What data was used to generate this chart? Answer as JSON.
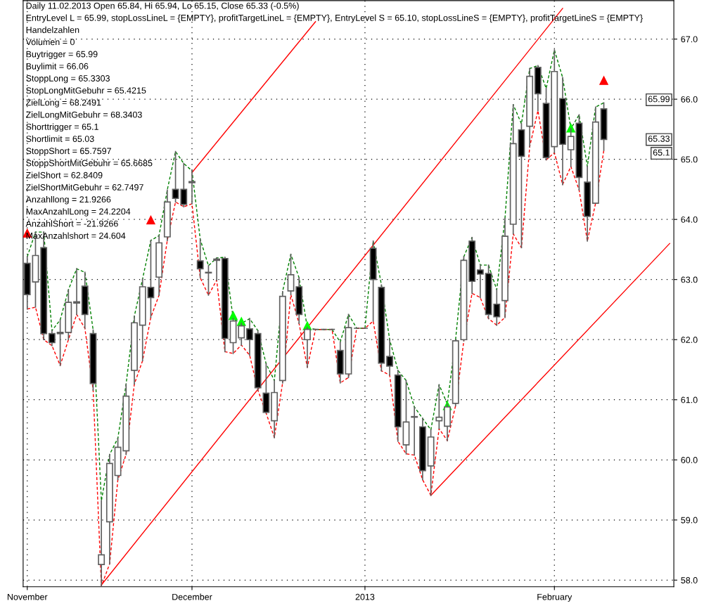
{
  "chart_data": {
    "type": "candlestick",
    "title": "Daily 11.02.2013 Open 65.84, Hi 65.94, Lo 65.15, Close 65.33 (-0.5%)",
    "annotations": [
      "EntryLevel L = 65.99, stopLossLineL = {EMPTY}, profitTargetLineL = {EMPTY}, EntryLevel S = 65.10, stopLossLineS = {EMPTY}, profitTargetLineS = {EMPTY}",
      "Handelzahlen",
      "Volumen = 0",
      "Buytrigger = 65.99",
      "Buylimit = 66.06",
      "StoppLong = 65.3303",
      "StopLongMitGebuhr = 65.4215",
      "ZielLong = 68.2491",
      "ZielLongMitGebuhr = 68.3403",
      "Shorttrigger = 65.1",
      "Shortlimit = 65.03",
      "StoppShort = 65.7597",
      "StoppShortMitGebuhr = 65.6685",
      "ZielShort = 62.8409",
      "ZielShortMitGebuhr = 62.7497",
      "Anzahllong = 21.9266",
      "MaxAnzahlLong = 24.2204",
      "AnzahlShort = -21.9266",
      "MaxAnzahlshort = 24.604",
      {
        "text": "65.99",
        "y": 65.99
      },
      {
        "text": "65.33",
        "y": 65.33
      },
      {
        "text": "65.1",
        "y": 65.1
      }
    ],
    "categories": [
      "November",
      null,
      null,
      null,
      null,
      null,
      null,
      null,
      null,
      null,
      null,
      null,
      null,
      null,
      null,
      null,
      null,
      null,
      null,
      null,
      "December",
      null,
      null,
      null,
      null,
      null,
      null,
      null,
      null,
      null,
      null,
      null,
      null,
      null,
      null,
      null,
      null,
      null,
      null,
      null,
      null,
      "2013",
      null,
      null,
      null,
      null,
      null,
      null,
      null,
      null,
      null,
      null,
      null,
      null,
      null,
      null,
      null,
      null,
      null,
      null,
      null,
      null,
      null,
      null,
      "February",
      null,
      null,
      null,
      null,
      null,
      null,
      null,
      null,
      null,
      null,
      null,
      null,
      null,
      null
    ],
    "ohlc": [
      [
        63.27,
        63.38,
        62.51,
        62.75
      ],
      [
        62.96,
        63.79,
        62.54,
        63.4
      ],
      [
        63.53,
        63.79,
        62.0,
        62.1
      ],
      [
        62.1,
        62.15,
        61.9,
        61.95
      ],
      [
        62.12,
        62.33,
        61.57,
        62.1
      ],
      [
        62.12,
        62.83,
        62.0,
        62.62
      ],
      [
        62.61,
        63.18,
        62.42,
        62.63
      ],
      [
        62.89,
        63.12,
        62.19,
        62.42
      ],
      [
        62.1,
        62.16,
        61.16,
        61.27
      ],
      [
        58.26,
        59.32,
        57.9,
        58.42
      ],
      [
        58.97,
        60.09,
        58.27,
        59.94
      ],
      [
        59.74,
        60.36,
        59.67,
        60.21
      ],
      [
        60.15,
        61.26,
        60.09,
        61.06
      ],
      [
        61.49,
        62.39,
        61.26,
        62.28
      ],
      [
        62.24,
        63.01,
        61.65,
        62.88
      ],
      [
        62.87,
        63.65,
        62.37,
        62.7
      ],
      [
        63.04,
        63.73,
        62.74,
        63.61
      ],
      [
        63.71,
        64.49,
        63.65,
        64.29
      ],
      [
        64.5,
        65.13,
        64.29,
        64.35
      ],
      [
        64.5,
        64.93,
        64.21,
        64.25
      ],
      [
        64.63,
        64.81,
        64.26,
        64.61
      ],
      [
        63.31,
        63.67,
        63.03,
        63.18
      ],
      [
        63.12,
        63.23,
        62.74,
        63.11
      ],
      [
        63.32,
        63.36,
        62.99,
        63.34
      ],
      [
        63.35,
        63.37,
        61.8,
        62.02
      ],
      [
        61.95,
        62.35,
        61.77,
        62.31
      ],
      [
        62.03,
        62.27,
        61.91,
        62.23
      ],
      [
        62.18,
        62.35,
        61.74,
        62.0
      ],
      [
        62.1,
        62.15,
        61.16,
        61.2
      ],
      [
        61.11,
        61.6,
        60.78,
        60.79
      ],
      [
        60.65,
        61.32,
        60.37,
        61.12
      ],
      [
        61.32,
        62.8,
        61.28,
        62.72
      ],
      [
        62.81,
        63.42,
        62.75,
        63.08
      ],
      [
        62.88,
        63.03,
        62.27,
        62.42
      ],
      [
        62.0,
        62.2,
        61.54,
        62.17
      ],
      [
        62.17,
        62.17,
        62.17,
        62.17
      ],
      [
        62.17,
        62.17,
        62.17,
        62.17
      ],
      [
        62.17,
        62.17,
        62.17,
        62.17
      ],
      [
        61.82,
        61.96,
        61.28,
        61.43
      ],
      [
        61.43,
        62.42,
        61.37,
        62.2
      ],
      [
        62.19,
        62.19,
        62.19,
        62.19
      ],
      [
        62.19,
        62.19,
        62.19,
        62.19
      ],
      [
        63.52,
        63.64,
        62.31,
        63.0
      ],
      [
        62.87,
        62.91,
        61.48,
        61.61
      ],
      [
        61.72,
        62.0,
        61.41,
        61.56
      ],
      [
        61.41,
        61.49,
        60.31,
        60.55
      ],
      [
        60.25,
        61.32,
        60.1,
        60.63
      ],
      [
        60.72,
        60.88,
        60.08,
        60.71
      ],
      [
        60.55,
        60.69,
        59.67,
        59.82
      ],
      [
        59.9,
        60.5,
        59.41,
        60.38
      ],
      [
        60.65,
        61.25,
        60.52,
        60.71
      ],
      [
        60.56,
        60.93,
        60.32,
        60.88
      ],
      [
        60.94,
        62.0,
        60.9,
        61.98
      ],
      [
        62.0,
        63.38,
        61.98,
        63.32
      ],
      [
        63.64,
        63.7,
        62.77,
        62.97
      ],
      [
        63.16,
        63.24,
        62.7,
        63.09
      ],
      [
        63.1,
        63.24,
        62.35,
        62.42
      ],
      [
        62.59,
        62.83,
        62.24,
        62.38
      ],
      [
        62.65,
        64.02,
        62.37,
        63.72
      ],
      [
        63.92,
        65.91,
        63.76,
        65.26
      ],
      [
        65.49,
        65.59,
        63.53,
        65.05
      ],
      [
        65.55,
        66.51,
        65.21,
        66.38
      ],
      [
        66.53,
        66.56,
        65.81,
        66.09
      ],
      [
        65.93,
        66.18,
        64.99,
        65.03
      ],
      [
        65.21,
        66.82,
        65.11,
        66.46
      ],
      [
        66.01,
        66.36,
        64.58,
        65.25
      ],
      [
        65.16,
        65.51,
        64.88,
        65.38
      ],
      [
        65.6,
        65.74,
        64.49,
        64.7
      ],
      [
        64.62,
        64.88,
        63.64,
        64.05
      ],
      [
        64.27,
        65.87,
        64.27,
        65.62
      ],
      [
        65.84,
        65.94,
        65.15,
        65.33
      ],
      null,
      null,
      null,
      null,
      null,
      null,
      null,
      null
    ],
    "series": [
      {
        "type": "line",
        "color": "#008000",
        "line_style": "dashed",
        "values": [
          63.38,
          63.79,
          63.79,
          62.15,
          62.33,
          62.83,
          63.18,
          63.12,
          62.16,
          59.32,
          60.09,
          60.36,
          61.26,
          62.39,
          63.01,
          63.65,
          63.73,
          64.49,
          65.13,
          64.93,
          64.81,
          63.67,
          63.23,
          63.36,
          63.37,
          62.35,
          62.27,
          62.35,
          62.15,
          61.6,
          61.32,
          62.8,
          63.42,
          63.03,
          62.2,
          62.17,
          62.17,
          62.17,
          61.96,
          62.42,
          62.19,
          62.19,
          63.64,
          62.91,
          62.0,
          61.49,
          61.32,
          60.88,
          60.69,
          60.5,
          61.25,
          60.93,
          62.0,
          63.38,
          63.7,
          63.24,
          63.24,
          62.83,
          64.02,
          65.91,
          65.59,
          66.51,
          66.56,
          66.18,
          66.82,
          66.36,
          65.51,
          65.74,
          64.88,
          65.87,
          65.94,
          null,
          null,
          null,
          null,
          null,
          null,
          null,
          null
        ]
      },
      {
        "type": "line",
        "color": "#ff0000",
        "line_style": "dashed",
        "values": [
          62.51,
          62.54,
          62.0,
          61.9,
          61.57,
          62.0,
          62.42,
          62.19,
          61.16,
          57.9,
          58.27,
          59.67,
          60.09,
          61.26,
          61.65,
          62.37,
          62.74,
          63.65,
          64.29,
          64.21,
          64.26,
          63.03,
          62.74,
          62.99,
          61.8,
          61.77,
          61.91,
          61.74,
          61.16,
          60.78,
          60.37,
          61.28,
          62.75,
          62.27,
          61.54,
          62.17,
          62.17,
          62.17,
          61.28,
          61.37,
          62.19,
          62.19,
          62.31,
          61.48,
          61.41,
          60.31,
          60.1,
          60.08,
          59.67,
          59.41,
          60.52,
          60.32,
          60.9,
          61.98,
          62.77,
          62.7,
          62.35,
          62.24,
          62.37,
          63.76,
          63.53,
          65.21,
          65.81,
          64.99,
          65.11,
          64.58,
          64.88,
          64.49,
          63.64,
          64.27,
          65.15,
          null,
          null,
          null,
          null,
          null,
          null,
          null,
          null
        ]
      },
      {
        "type": "line",
        "color": "#ff0000",
        "line_style": "solid",
        "values": [
          null,
          null,
          null,
          null,
          null,
          null,
          null,
          null,
          null,
          null,
          null,
          null,
          null,
          null,
          null,
          null,
          null,
          null,
          null,
          null,
          64.78,
          null,
          null,
          null,
          null,
          null,
          null,
          null,
          null,
          null,
          null,
          null,
          null,
          null,
          null,
          67.29,
          null,
          null,
          null,
          null,
          null,
          null,
          null,
          null,
          null,
          null,
          null,
          null,
          null,
          null,
          null,
          null,
          null,
          null,
          null,
          null,
          null,
          null,
          null,
          null,
          null,
          null,
          null,
          null,
          null,
          null,
          null,
          null,
          null,
          null,
          null,
          null,
          null,
          null,
          null,
          null,
          null,
          null,
          null
        ]
      },
      {
        "type": "line",
        "color": "#ff0000",
        "line_style": "solid",
        "values": [
          null,
          null,
          null,
          null,
          null,
          null,
          null,
          null,
          null,
          57.92,
          null,
          null,
          null,
          null,
          null,
          null,
          null,
          null,
          null,
          null,
          null,
          null,
          null,
          null,
          null,
          null,
          null,
          null,
          null,
          null,
          null,
          null,
          null,
          null,
          null,
          null,
          null,
          null,
          null,
          null,
          null,
          null,
          null,
          null,
          null,
          null,
          null,
          null,
          null,
          null,
          null,
          null,
          null,
          null,
          null,
          null,
          null,
          null,
          null,
          null,
          null,
          null,
          null,
          null,
          null,
          67.51,
          null,
          null,
          null,
          null,
          null,
          null,
          null,
          null,
          null,
          null,
          null,
          null,
          null
        ]
      },
      {
        "type": "line",
        "color": "#ff0000",
        "line_style": "solid",
        "values": [
          null,
          null,
          null,
          null,
          null,
          null,
          null,
          null,
          null,
          null,
          null,
          null,
          null,
          null,
          null,
          null,
          null,
          null,
          null,
          null,
          null,
          null,
          null,
          null,
          null,
          null,
          null,
          null,
          null,
          null,
          null,
          null,
          null,
          null,
          null,
          null,
          null,
          null,
          null,
          null,
          null,
          null,
          null,
          null,
          null,
          null,
          null,
          null,
          null,
          59.41,
          null,
          null,
          null,
          null,
          null,
          null,
          null,
          null,
          null,
          null,
          null,
          null,
          null,
          null,
          null,
          null,
          null,
          null,
          null,
          null,
          null,
          null,
          null,
          null,
          null,
          null,
          null,
          null,
          63.6
        ]
      },
      {
        "type": "scatter",
        "color": "#00ff00",
        "marker": "triangle",
        "values": [
          null,
          null,
          null,
          null,
          null,
          null,
          null,
          null,
          null,
          null,
          null,
          null,
          null,
          null,
          null,
          null,
          null,
          null,
          null,
          null,
          null,
          null,
          null,
          null,
          null,
          62.4,
          62.3,
          null,
          null,
          null,
          null,
          null,
          null,
          null,
          62.23,
          null,
          null,
          null,
          null,
          null,
          null,
          null,
          null,
          null,
          null,
          null,
          null,
          null,
          null,
          null,
          null,
          60.9,
          null,
          null,
          null,
          null,
          null,
          null,
          null,
          null,
          null,
          null,
          null,
          null,
          null,
          null,
          65.52,
          null,
          null,
          null,
          null,
          null,
          null,
          null,
          null,
          null,
          null,
          null,
          null
        ]
      },
      {
        "type": "scatter",
        "color": "#ff0000",
        "marker": "triangle",
        "values": [
          63.77,
          null,
          null,
          null,
          null,
          null,
          null,
          null,
          null,
          null,
          null,
          null,
          null,
          null,
          null,
          63.99,
          null,
          null,
          null,
          null,
          null,
          null,
          null,
          null,
          null,
          null,
          null,
          null,
          null,
          null,
          null,
          null,
          null,
          null,
          null,
          null,
          null,
          null,
          null,
          null,
          null,
          null,
          null,
          null,
          null,
          null,
          null,
          null,
          null,
          null,
          null,
          null,
          null,
          null,
          null,
          null,
          null,
          null,
          null,
          null,
          null,
          null,
          null,
          null,
          null,
          null,
          null,
          null,
          null,
          null,
          66.31,
          null,
          null,
          null,
          null,
          null,
          null,
          null,
          null
        ]
      }
    ],
    "ylim": [
      57.89,
      67.64
    ],
    "yticks": [
      {
        "value": 58,
        "label": "58.0"
      },
      {
        "value": 59,
        "label": "59.0"
      },
      {
        "value": 60,
        "label": "60.0"
      },
      {
        "value": 61,
        "label": "61.0"
      },
      {
        "value": 62,
        "label": "62.0"
      },
      {
        "value": 63,
        "label": "63.0"
      },
      {
        "value": 64,
        "label": "64.0"
      },
      {
        "value": 65,
        "label": "65.0"
      },
      {
        "value": 66,
        "label": "66.0"
      },
      {
        "value": 67,
        "label": "67.0"
      }
    ],
    "grid": true
  }
}
